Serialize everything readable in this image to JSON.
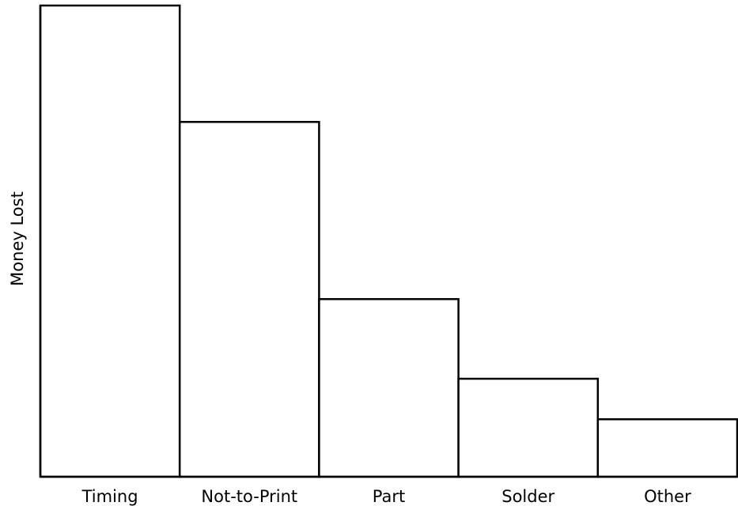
{
  "chart_data": {
    "type": "bar",
    "title": "",
    "xlabel": "",
    "ylabel": "Money Lost",
    "categories": [
      "Timing",
      "Not-to-Print",
      "Part",
      "Solder",
      "Other"
    ],
    "values": [
      100,
      75.3,
      37.7,
      20.8,
      12.2
    ],
    "ylim": [
      0,
      100
    ],
    "grid": false,
    "legend": "none",
    "colors": {
      "bar_fill": "#ffffff",
      "bar_stroke": "#000000",
      "axis": "#000000",
      "text": "#000000"
    }
  }
}
